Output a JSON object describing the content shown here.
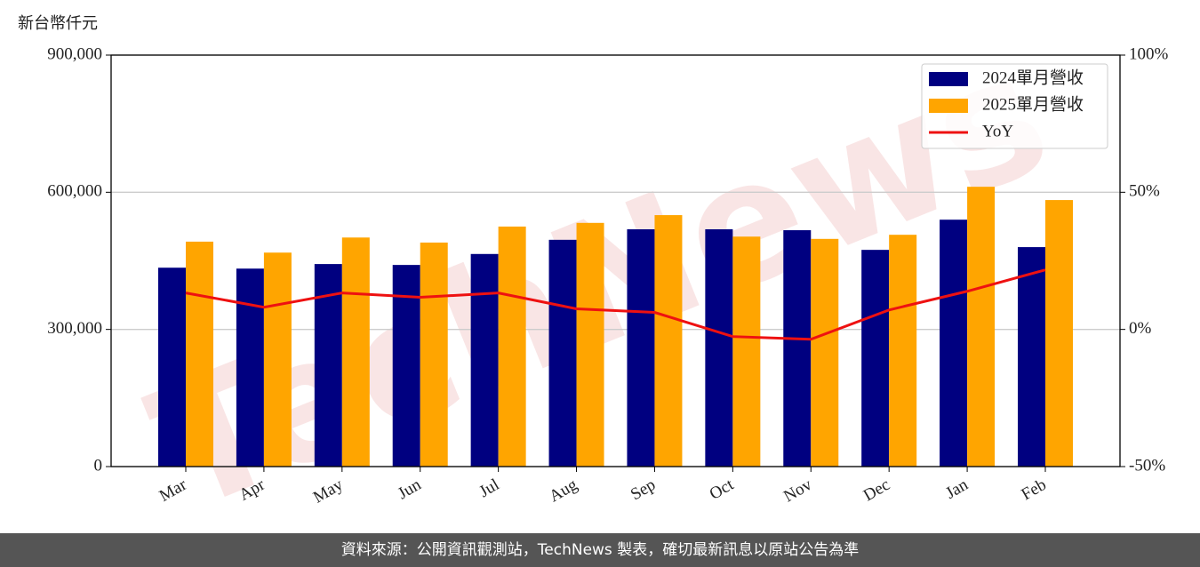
{
  "chart_data": {
    "type": "bar-line",
    "y_label": "新台幣仟元",
    "watermark": "TechNews",
    "categories": [
      "Mar",
      "Apr",
      "May",
      "Jun",
      "Jul",
      "Aug",
      "Sep",
      "Oct",
      "Nov",
      "Dec",
      "Jan",
      "Feb"
    ],
    "series": [
      {
        "name": "2024單月營收",
        "color": "#000080",
        "type": "bar",
        "values": [
          435000,
          433000,
          443000,
          441000,
          465000,
          496000,
          519000,
          519000,
          517000,
          474000,
          540000,
          480000
        ]
      },
      {
        "name": "2025單月營收",
        "color": "#ffa500",
        "type": "bar",
        "values": [
          492000,
          468000,
          501000,
          490000,
          525000,
          533000,
          550000,
          503000,
          498000,
          507000,
          612000,
          583000
        ]
      },
      {
        "name": "YoY",
        "color": "#ee1111",
        "type": "line",
        "axis": "y2",
        "values": [
          13.3,
          8.1,
          13.3,
          11.7,
          13.3,
          7.5,
          6.2,
          -2.6,
          -3.6,
          7.1,
          13.9,
          21.7
        ]
      }
    ],
    "ylim": [
      0,
      900000
    ],
    "yticks": [
      0,
      {
        "value": 300000,
        "label": "300,000"
      },
      {
        "value": 600000,
        "label": "600,000"
      },
      {
        "value": 900000,
        "label": "900,000"
      }
    ],
    "y2lim": [
      -50,
      100
    ],
    "y2ticks": [
      {
        "value": -50,
        "label": "-50%"
      },
      {
        "value": 0,
        "label": "0%"
      },
      {
        "value": 50,
        "label": "50%"
      },
      {
        "value": 100,
        "label": "100%"
      }
    ],
    "grid": true,
    "legend": "upper right"
  },
  "footer": "資料來源：公開資訊觀測站，TechNews 製表，確切最新訊息以原站公告為準"
}
